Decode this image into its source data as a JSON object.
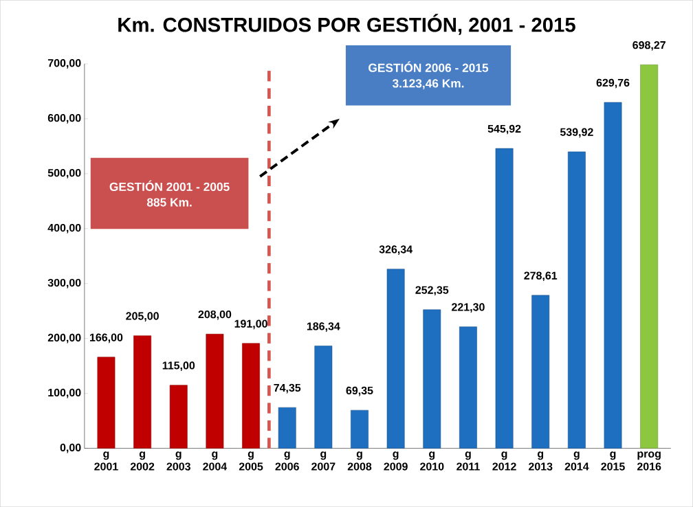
{
  "chart_data": {
    "type": "bar",
    "title": "Km. CONSTRUIDOS POR GESTIÓN, 2001 - 2015",
    "categories": [
      "g 2001",
      "g 2002",
      "g 2003",
      "g 2004",
      "g 2005",
      "g 2006",
      "g 2007",
      "g 2008",
      "g 2009",
      "g 2010",
      "g 2011",
      "g 2012",
      "g 2013",
      "g 2014",
      "g 2015",
      "prog 2016"
    ],
    "values": [
      166.0,
      205.0,
      115.0,
      208.0,
      191.0,
      74.35,
      186.34,
      69.35,
      326.34,
      252.35,
      221.3,
      545.92,
      278.61,
      539.92,
      629.76,
      698.27
    ],
    "value_labels": [
      "166,00",
      "205,00",
      "115,00",
      "208,00",
      "191,00",
      "74,35",
      "186,34",
      "69,35",
      "326,34",
      "252,35",
      "221,30",
      "545,92",
      "278,61",
      "539,92",
      "629,76",
      "698,27"
    ],
    "colors": [
      "#c00000",
      "#c00000",
      "#c00000",
      "#c00000",
      "#c00000",
      "#1f6fc0",
      "#1f6fc0",
      "#1f6fc0",
      "#1f6fc0",
      "#1f6fc0",
      "#1f6fc0",
      "#1f6fc0",
      "#1f6fc0",
      "#1f6fc0",
      "#1f6fc0",
      "#8dc63f"
    ],
    "ylim": [
      0,
      700
    ],
    "yticks": [
      {
        "value": 0,
        "label": "0,00"
      },
      {
        "value": 100,
        "label": "100,00"
      },
      {
        "value": 200,
        "label": "200,00"
      },
      {
        "value": 300,
        "label": "300,00"
      },
      {
        "value": 400,
        "label": "400,00"
      },
      {
        "value": 500,
        "label": "500,00"
      },
      {
        "value": 600,
        "label": "600,00"
      },
      {
        "value": 700,
        "label": "700,00"
      }
    ],
    "annotations": [
      "GESTIÓN 2001 - 2005",
      "885 Km.",
      "GESTIÓN 2006 - 2015",
      "3.123,46 Km."
    ]
  }
}
